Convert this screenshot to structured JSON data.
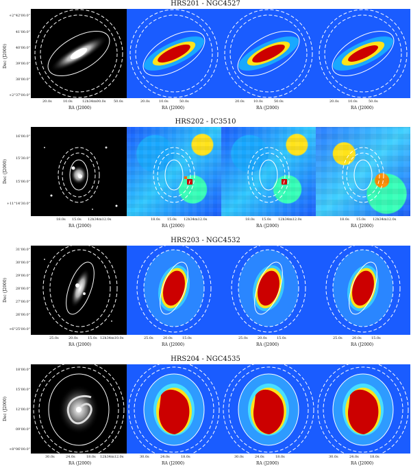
{
  "figure": {
    "rows": [
      {
        "title": "HRS201 - NGC4527",
        "dec_label": "Dec (J2000)",
        "ra_label": "RA (J2000)",
        "dec_ticks": [
          "+2°42'00.0\"",
          "41'00.0\"",
          "40'00.0\"",
          "39'00.0\"",
          "38'00.0\"",
          "+2°37'00.0\""
        ],
        "ra_ticks": [
          "20.0s",
          "10.0s",
          "12h34m00.0s",
          "50.0s"
        ]
      },
      {
        "title": "HRS202 - IC3510",
        "dec_label": "Dec (J2000)",
        "ra_label": "RA (J2000)",
        "dec_ticks": [
          "16'00.0\"",
          "15'30.0\"",
          "15'00.0\"",
          "+11°14'30.0\""
        ],
        "ra_ticks": [
          "18.0s",
          "15.0s",
          "12h34m12.0s"
        ]
      },
      {
        "title": "HRS203 - NGC4532",
        "dec_label": "Dec (J2000)",
        "ra_label": "RA (J2000)",
        "dec_ticks": [
          "31'00.0\"",
          "30'00.0\"",
          "29'00.0\"",
          "28'00.0\"",
          "27'00.0\"",
          "26'00.0\"",
          "+6°25'00.0\""
        ],
        "ra_ticks": [
          "25.0s",
          "20.0s",
          "15.0s",
          "12h34m10.0s"
        ]
      },
      {
        "title": "HRS204 - NGC4535",
        "dec_label": "Dec (J2000)",
        "ra_label": "RA (J2000)",
        "dec_ticks": [
          "18'00.0\"",
          "15'00.0\"",
          "12'00.0\"",
          "09'00.0\"",
          "+8°06'00.0\""
        ],
        "ra_ticks": [
          "30.0s",
          "24.0s",
          "18.0s",
          "12h34m12.0s"
        ]
      }
    ]
  }
}
